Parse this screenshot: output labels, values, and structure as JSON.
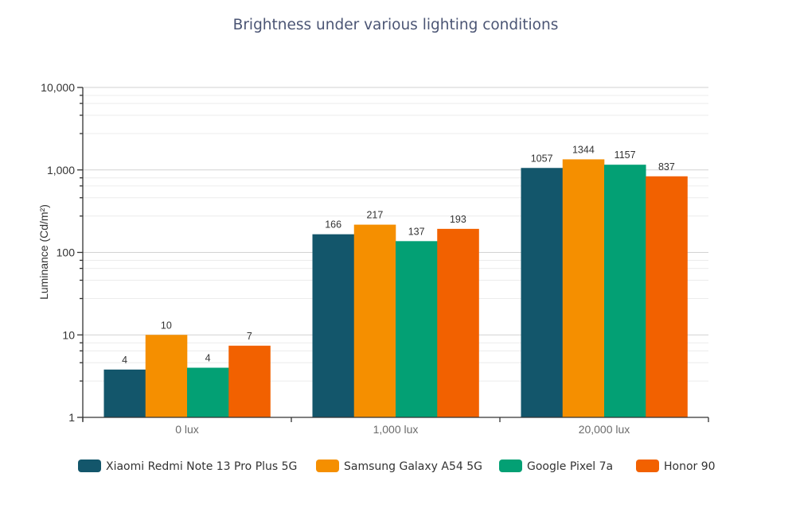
{
  "chart_data": {
    "type": "bar",
    "title": "Brightness under various lighting conditions",
    "xlabel": "",
    "ylabel": "Luminance (Cd/m²)",
    "yscale": "log",
    "ylim": [
      1,
      10000
    ],
    "yticks": [
      {
        "value": 1,
        "label": "1"
      },
      {
        "value": 10,
        "label": "10"
      },
      {
        "value": 100,
        "label": "100"
      },
      {
        "value": 1000,
        "label": "1,000"
      },
      {
        "value": 10000,
        "label": "10,000"
      }
    ],
    "grid": true,
    "legend_position": "bottom",
    "categories": [
      "0 lux",
      "1,000 lux",
      "20,000 lux"
    ],
    "series": [
      {
        "name": "Xiaomi Redmi Note 13 Pro Plus 5G",
        "color": "#13566b",
        "values": [
          3.8,
          166,
          1057
        ],
        "labels": [
          "4",
          "166",
          "1057"
        ]
      },
      {
        "name": "Samsung Galaxy A54 5G",
        "color": "#f58f00",
        "values": [
          10,
          217,
          1344
        ],
        "labels": [
          "10",
          "217",
          "1344"
        ]
      },
      {
        "name": "Google Pixel 7a",
        "color": "#03a074",
        "values": [
          4,
          137,
          1157
        ],
        "labels": [
          "4",
          "137",
          "1157"
        ]
      },
      {
        "name": "Honor 90",
        "color": "#f26100",
        "values": [
          7.4,
          193,
          837
        ],
        "labels": [
          "7",
          "193",
          "837"
        ]
      }
    ]
  }
}
